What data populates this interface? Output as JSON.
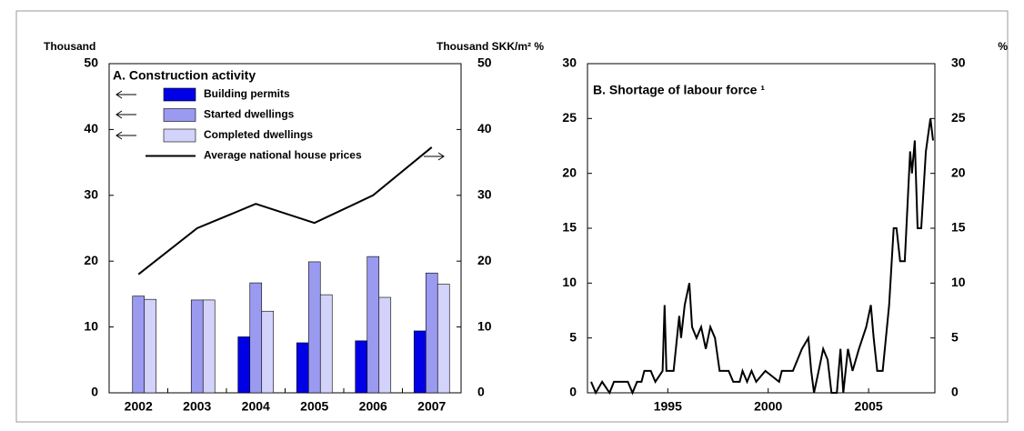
{
  "chart_data": [
    {
      "type": "bar",
      "title": "A. Construction activity",
      "y_label": "Thousand",
      "y2_label": "Thousand SKK/m² %",
      "categories": [
        "2002",
        "2003",
        "2004",
        "2005",
        "2006",
        "2007"
      ],
      "series": [
        {
          "name": "Building permits",
          "color": "#0000e6",
          "values": [
            null,
            null,
            8.5,
            7.6,
            7.9,
            9.4
          ]
        },
        {
          "name": "Started dwellings",
          "color": "#9a9af0",
          "values": [
            14.7,
            14.1,
            16.7,
            19.9,
            20.7,
            18.2
          ]
        },
        {
          "name": "Completed dwellings",
          "color": "#d2d2fa",
          "values": [
            14.2,
            14.1,
            12.4,
            14.9,
            14.5,
            16.5
          ]
        },
        {
          "name": "Average national house prices",
          "color": "#000000",
          "type": "line",
          "axis": "y2",
          "values": [
            18,
            25,
            28.7,
            25.8,
            30,
            37.3
          ]
        }
      ],
      "ylim": [
        0,
        50
      ],
      "yticks": [
        0,
        10,
        20,
        30,
        40,
        50
      ],
      "y2lim": [
        0,
        50
      ],
      "y2ticks": [
        0,
        10,
        20,
        30,
        40,
        50
      ]
    },
    {
      "type": "line",
      "title": "B. Shortage of labour force ¹",
      "y2_label": "%",
      "color": "#000000",
      "x": [
        1991.18,
        1991.41,
        1991.73,
        1992.1,
        1992.32,
        1993.01,
        1993.24,
        1993.47,
        1993.69,
        1993.83,
        1994.15,
        1994.38,
        1994.74,
        1994.84,
        1994.93,
        1995.29,
        1995.57,
        1995.66,
        1995.84,
        1996.07,
        1996.21,
        1996.43,
        1996.66,
        1996.89,
        1997.12,
        1997.35,
        1997.58,
        1998.03,
        1998.26,
        1998.58,
        1998.72,
        1998.95,
        1999.17,
        1999.4,
        1999.86,
        2000.54,
        2000.68,
        2001.23,
        2001.68,
        2002.0,
        2002.14,
        2002.28,
        2002.51,
        2002.74,
        2002.96,
        2003.15,
        2003.42,
        2003.6,
        2003.74,
        2003.97,
        2004.2,
        2004.52,
        2004.88,
        2005.11,
        2005.25,
        2005.43,
        2005.7,
        2006.02,
        2006.25,
        2006.39,
        2006.57,
        2006.8,
        2007.07,
        2007.16,
        2007.3,
        2007.44,
        2007.62,
        2007.85,
        2008.08,
        2008.21
      ],
      "values": [
        1,
        0,
        1,
        0,
        1,
        1,
        0,
        1,
        1,
        2,
        2,
        1,
        2,
        8,
        2,
        2,
        7,
        5,
        8,
        10,
        6,
        5,
        6,
        4,
        6,
        5,
        2,
        2,
        1,
        1,
        2,
        1,
        2,
        1,
        2,
        1,
        2,
        2,
        4,
        5,
        2,
        0,
        2,
        4,
        3,
        0,
        0,
        4,
        0,
        4,
        2,
        4,
        6,
        8,
        5,
        2,
        2,
        8,
        15,
        15,
        12,
        12,
        22,
        20,
        23,
        15,
        15,
        22,
        25,
        23
      ],
      "xlim": [
        1991,
        2008.3
      ],
      "xticks": [
        1995,
        2000,
        2005
      ],
      "ylim": [
        0,
        30
      ],
      "yticks": [
        0,
        5,
        10,
        15,
        20,
        25,
        30
      ],
      "y2lim": [
        0,
        30
      ],
      "y2ticks": [
        0,
        5,
        10,
        15,
        20,
        25,
        30
      ]
    }
  ]
}
